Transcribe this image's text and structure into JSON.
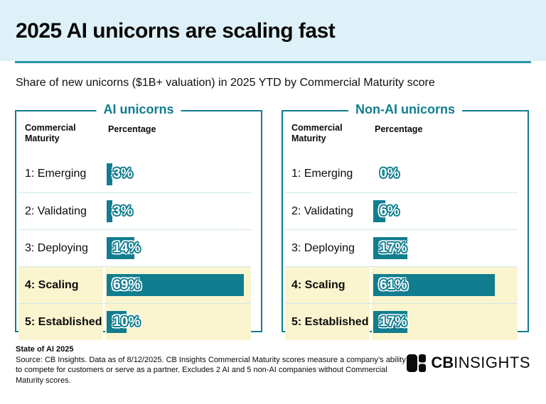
{
  "header": {
    "title": "2025 AI unicorns are scaling fast",
    "subtitle": "Share of new unicorns ($1B+ valuation) in 2025 YTD by Commercial Maturity score"
  },
  "panels": [
    {
      "title": "AI unicorns",
      "col_maturity": "Commercial Maturity",
      "col_percentage": "Percentage",
      "rows": [
        {
          "label": "1: Emerging",
          "value": 3,
          "display": "3%",
          "highlight": false
        },
        {
          "label": "2: Validating",
          "value": 3,
          "display": "3%",
          "highlight": false
        },
        {
          "label": "3: Deploying",
          "value": 14,
          "display": "14%",
          "highlight": false
        },
        {
          "label": "4: Scaling",
          "value": 69,
          "display": "69%",
          "highlight": true
        },
        {
          "label": "5: Established",
          "value": 10,
          "display": "10%",
          "highlight": true
        }
      ]
    },
    {
      "title": "Non-AI unicorns",
      "col_maturity": "Commercial Maturity",
      "col_percentage": "Percentage",
      "rows": [
        {
          "label": "1: Emerging",
          "value": 0,
          "display": "0%",
          "highlight": false
        },
        {
          "label": "2: Validating",
          "value": 6,
          "display": "6%",
          "highlight": false
        },
        {
          "label": "3: Deploying",
          "value": 17,
          "display": "17%",
          "highlight": false
        },
        {
          "label": "4: Scaling",
          "value": 61,
          "display": "61%",
          "highlight": true
        },
        {
          "label": "5: Established",
          "value": 17,
          "display": "17%",
          "highlight": true
        }
      ]
    }
  ],
  "footer": {
    "title": "State of AI 2025",
    "source": "Source: CB Insights. Data as of 8/12/2025. CB Insights Commercial Maturity scores measure a company’s ability to compete for customers or serve as a partner. Excludes 2 AI and 5 non-AI companies without Commercial Maturity scores.",
    "logo_bold": "CB",
    "logo_light": "INSIGHTS"
  },
  "colors": {
    "teal": "#117D8F",
    "rule": "#2795A4",
    "band": "#DFF1F8",
    "yellow": "#FBF5CF",
    "separator": "#CEE6ED"
  },
  "chart_data": [
    {
      "type": "bar",
      "orientation": "horizontal",
      "title": "AI unicorns",
      "categories": [
        "1: Emerging",
        "2: Validating",
        "3: Deploying",
        "4: Scaling",
        "5: Established"
      ],
      "values": [
        3,
        3,
        14,
        69,
        10
      ],
      "value_suffix": "%",
      "xlabel": "Percentage",
      "ylabel": "Commercial Maturity",
      "xlim": [
        0,
        70
      ],
      "highlighted_categories": [
        "4: Scaling",
        "5: Established"
      ],
      "grid": false,
      "legend": false
    },
    {
      "type": "bar",
      "orientation": "horizontal",
      "title": "Non-AI unicorns",
      "categories": [
        "1: Emerging",
        "2: Validating",
        "3: Deploying",
        "4: Scaling",
        "5: Established"
      ],
      "values": [
        0,
        6,
        17,
        61,
        17
      ],
      "value_suffix": "%",
      "xlabel": "Percentage",
      "ylabel": "Commercial Maturity",
      "xlim": [
        0,
        70
      ],
      "highlighted_categories": [
        "4: Scaling",
        "5: Established"
      ],
      "grid": false,
      "legend": false
    }
  ]
}
